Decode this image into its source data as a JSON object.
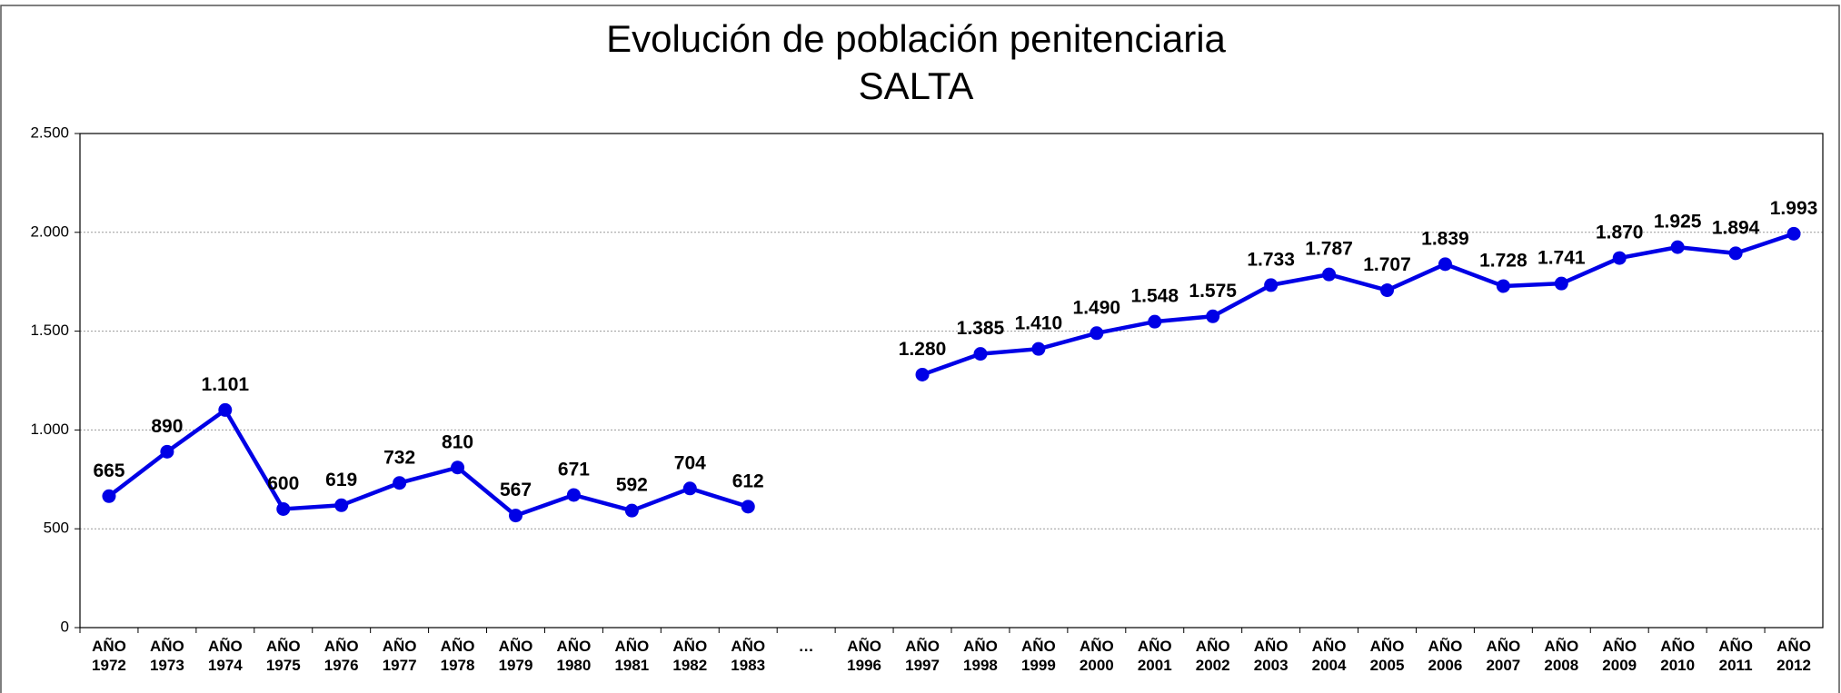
{
  "chart_data": {
    "type": "line",
    "title": "Evolución de población penitenciaria",
    "subtitle": "SALTA",
    "categories": [
      "AÑO 1972",
      "AÑO 1973",
      "AÑO 1974",
      "AÑO 1975",
      "AÑO 1976",
      "AÑO 1977",
      "AÑO 1978",
      "AÑO 1979",
      "AÑO 1980",
      "AÑO 1981",
      "AÑO 1982",
      "AÑO 1983",
      "…",
      "AÑO 1996",
      "AÑO 1997",
      "AÑO 1998",
      "AÑO 1999",
      "AÑO 2000",
      "AÑO 2001",
      "AÑO 2002",
      "AÑO 2003",
      "AÑO 2004",
      "AÑO 2005",
      "AÑO 2006",
      "AÑO 2007",
      "AÑO 2008",
      "AÑO 2009",
      "AÑO 2010",
      "AÑO 2011",
      "AÑO 2012"
    ],
    "values": [
      665,
      890,
      1101,
      600,
      619,
      732,
      810,
      567,
      671,
      592,
      704,
      612,
      null,
      null,
      1280,
      1385,
      1410,
      1490,
      1548,
      1575,
      1733,
      1787,
      1707,
      1839,
      1728,
      1741,
      1870,
      1925,
      1894,
      1993
    ],
    "value_labels": [
      "665",
      "890",
      "1.101",
      "600",
      "619",
      "732",
      "810",
      "567",
      "671",
      "592",
      "704",
      "612",
      null,
      null,
      "1.280",
      "1.385",
      "1.410",
      "1.490",
      "1.548",
      "1.575",
      "1.733",
      "1.787",
      "1.707",
      "1.839",
      "1.728",
      "1.741",
      "1.870",
      "1.925",
      "1.894",
      "1.993"
    ],
    "color": "#0000e6",
    "ylim": [
      0,
      2500
    ],
    "yticks": [
      0,
      500,
      {
        "value": 1000,
        "label": "1.000"
      },
      {
        "value": 1500,
        "label": "1.500"
      },
      {
        "value": 2000,
        "label": "2.000"
      },
      {
        "value": 2500,
        "label": "2.500"
      }
    ],
    "grid": true
  }
}
